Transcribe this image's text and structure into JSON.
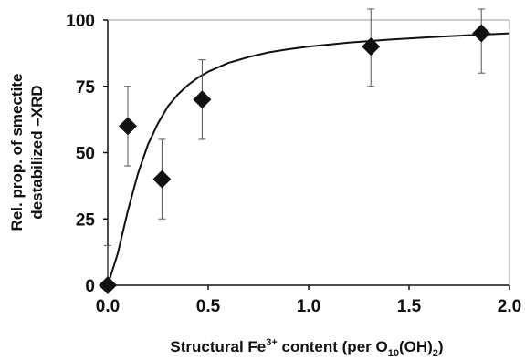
{
  "chart_data": {
    "type": "scatter",
    "title": "",
    "xlabel": {
      "prefix": "Structural Fe",
      "sup": "3+",
      "middle": " content (per O",
      "sub1": "10",
      "middle2": "(OH)",
      "sub2": "2",
      "suffix": ")"
    },
    "ylabel": {
      "line1": "Rel. prop. of smectite",
      "line2": "destabilized –XRD"
    },
    "xlim": [
      0,
      2.0
    ],
    "ylim": [
      0,
      100
    ],
    "xticks": [
      "0.0",
      "0.5",
      "1.0",
      "1.5",
      "2.0"
    ],
    "yticks": [
      "0",
      "25",
      "50",
      "75",
      "100"
    ],
    "grid": false,
    "legend": "none",
    "marker": "diamond",
    "color": "#111111",
    "points": [
      {
        "x": 0.0,
        "y": 0,
        "err_low": 15,
        "err_high": 15
      },
      {
        "x": 0.1,
        "y": 60,
        "err_low": 15,
        "err_high": 15
      },
      {
        "x": 0.27,
        "y": 40,
        "err_low": 15,
        "err_high": 15
      },
      {
        "x": 0.47,
        "y": 70,
        "err_low": 15,
        "err_high": 15
      },
      {
        "x": 1.31,
        "y": 90,
        "err_low": 15,
        "err_high": 15
      },
      {
        "x": 1.86,
        "y": 95,
        "err_low": 15,
        "err_high": 15
      }
    ],
    "fit_curve": [
      [
        0.0,
        0
      ],
      [
        0.05,
        12
      ],
      [
        0.1,
        28
      ],
      [
        0.15,
        42
      ],
      [
        0.2,
        53
      ],
      [
        0.25,
        61
      ],
      [
        0.3,
        67.5
      ],
      [
        0.35,
        72
      ],
      [
        0.4,
        75.5
      ],
      [
        0.45,
        78.3
      ],
      [
        0.5,
        80.5
      ],
      [
        0.6,
        83.8
      ],
      [
        0.7,
        86
      ],
      [
        0.8,
        87.8
      ],
      [
        0.9,
        89
      ],
      [
        1.0,
        90
      ],
      [
        1.2,
        91.5
      ],
      [
        1.4,
        92.6
      ],
      [
        1.6,
        93.5
      ],
      [
        1.8,
        94.3
      ],
      [
        2.0,
        95
      ]
    ]
  }
}
